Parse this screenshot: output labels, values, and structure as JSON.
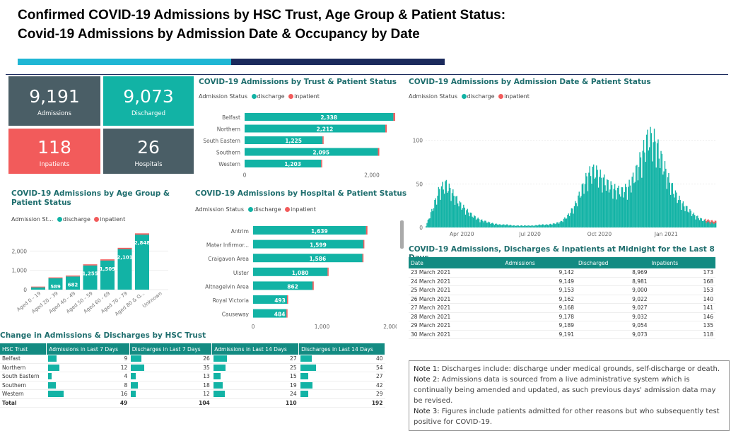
{
  "page": {
    "title_line1": "Confirmed COVID-19 Admissions by HSC Trust, Age Group & Patient Status:",
    "title_line2": "Covid-19 Admissions by Admission Date & Occupancy by Date"
  },
  "colors": {
    "discharge": "#12b3a5",
    "inpatient": "#f25b5b",
    "dark": "#4a5e66",
    "header": "#138b82",
    "bar_light": "#1fb6d4",
    "bar_dark": "#1b2a5c"
  },
  "cards": [
    {
      "value": "9,191",
      "label": "Admissions",
      "color": "#4a5e66"
    },
    {
      "value": "9,073",
      "label": "Discharged",
      "color": "#12b3a5"
    },
    {
      "value": "118",
      "label": "Inpatients",
      "color": "#f25b5b"
    },
    {
      "value": "26",
      "label": "Hospitals",
      "color": "#4a5e66"
    }
  ],
  "legend": {
    "label": "Admission Status",
    "label_short": "Admission St...",
    "discharge": "discharge",
    "inpatient": "inpatient"
  },
  "chart_data": [
    {
      "type": "bar",
      "title": "COVID-19 Admissions by Trust & Patient Status",
      "orientation": "horizontal",
      "categories": [
        "Belfast",
        "Northern",
        "South Eastern",
        "Southern",
        "Western"
      ],
      "series": [
        {
          "name": "discharge",
          "values": [
            2338,
            2212,
            1225,
            2095,
            1203
          ]
        },
        {
          "name": "inpatient",
          "values": [
            28,
            22,
            8,
            22,
            10
          ]
        }
      ],
      "data_labels": [
        "2,338",
        "2,212",
        "1,225",
        "2,095",
        "1,203"
      ],
      "xlim": [
        0,
        2500
      ],
      "x_ticks": [
        "0",
        "2,000"
      ]
    },
    {
      "type": "line",
      "title": "COVID-19 Admissions by Admission Date & Patient Status",
      "ylim": [
        0,
        120
      ],
      "y_ticks": [
        "0",
        "50",
        "100"
      ],
      "x_ticks": [
        "Apr 2020",
        "Jul 2020",
        "Oct 2020",
        "Jan 2021"
      ],
      "approximate_weekly_admissions": [
        2,
        20,
        40,
        45,
        35,
        25,
        18,
        12,
        8,
        6,
        4,
        3,
        3,
        2,
        2,
        2,
        2,
        3,
        3,
        4,
        6,
        12,
        22,
        38,
        55,
        60,
        52,
        45,
        40,
        38,
        42,
        55,
        75,
        95,
        90,
        70,
        50,
        35,
        25,
        18,
        12,
        8,
        6,
        5
      ]
    },
    {
      "type": "bar",
      "title": "COVID-19 Admissions by Age Group & Patient Status",
      "categories": [
        "Aged 0 - 19",
        "Aged 20 - 39",
        "Aged 40 - 49",
        "Aged 50 - 59",
        "Aged 60 - 69",
        "Aged 70 - 79",
        "Aged 80 & O...",
        "Unknown"
      ],
      "series": [
        {
          "name": "discharge",
          "values": [
            120,
            589,
            682,
            1255,
            1509,
            2101,
            2848,
            0
          ]
        },
        {
          "name": "inpatient",
          "values": [
            2,
            8,
            10,
            18,
            22,
            28,
            30,
            0
          ]
        }
      ],
      "data_labels": [
        "",
        "589",
        "682",
        "1,255",
        "1,509",
        "2,101",
        "2,848",
        ""
      ],
      "ylim": [
        0,
        3000
      ],
      "y_ticks": [
        "0",
        "1,000",
        "2,000"
      ]
    },
    {
      "type": "bar",
      "title": "COVID-19 Admissions by Hospital & Patient Status",
      "orientation": "horizontal",
      "categories": [
        "Antrim",
        "Mater Infirmor...",
        "Craigavon Area",
        "Ulster",
        "Altnagelvin Area",
        "Royal Victoria",
        "Causeway"
      ],
      "series": [
        {
          "name": "discharge",
          "values": [
            1639,
            1599,
            1586,
            1080,
            862,
            493,
            484
          ]
        },
        {
          "name": "inpatient",
          "values": [
            20,
            8,
            10,
            6,
            18,
            2,
            2
          ]
        }
      ],
      "data_labels": [
        "1,639",
        "1,599",
        "1,586",
        "1,080",
        "862",
        "493",
        "484"
      ],
      "xlim": [
        0,
        2000
      ],
      "x_ticks": [
        "0",
        "1,000",
        "2,000"
      ]
    }
  ],
  "trust_change": {
    "title": "Change in Admissions & Discharges by HSC Trust",
    "columns": [
      "HSC Trust",
      "Admissions in Last 7 Days",
      "Discharges in Last 7 Days",
      "Admissions in Last 14 Days",
      "Discharges in Last 14 Days"
    ],
    "rows": [
      {
        "trust": "Belfast",
        "v": [
          9,
          26,
          27,
          40
        ]
      },
      {
        "trust": "Northern",
        "v": [
          12,
          35,
          25,
          54
        ]
      },
      {
        "trust": "South Eastern",
        "v": [
          4,
          13,
          15,
          27
        ]
      },
      {
        "trust": "Southern",
        "v": [
          8,
          18,
          19,
          42
        ]
      },
      {
        "trust": "Western",
        "v": [
          16,
          12,
          24,
          29
        ]
      }
    ],
    "total": {
      "label": "Total",
      "v": [
        49,
        104,
        110,
        192
      ]
    },
    "max": [
      16,
      35,
      27,
      54
    ]
  },
  "midnight": {
    "title": "COVID-19 Admissions, Discharges & Inpatients at Midnight for the Last 8 Days",
    "columns": [
      "Date",
      "Admissions",
      "Discharged",
      "Inpatients"
    ],
    "rows": [
      [
        "23 March 2021",
        "9,142",
        "8,969",
        "173"
      ],
      [
        "24 March 2021",
        "9,149",
        "8,981",
        "168"
      ],
      [
        "25 March 2021",
        "9,153",
        "9,000",
        "153"
      ],
      [
        "26 March 2021",
        "9,162",
        "9,022",
        "140"
      ],
      [
        "27 March 2021",
        "9,168",
        "9,027",
        "141"
      ],
      [
        "28 March 2021",
        "9,178",
        "9,032",
        "146"
      ],
      [
        "29 March 2021",
        "9,189",
        "9,054",
        "135"
      ],
      [
        "30 March 2021",
        "9,191",
        "9,073",
        "118"
      ]
    ]
  },
  "notes": [
    {
      "label": "Note 1:",
      "text": " Discharges include: discharge under medical grounds, self-discharge or death."
    },
    {
      "label": "Note 2:",
      "text": " Admissions data is sourced from a live administrative system which is continually being amended and updated, as such previous days' admission data may be revised."
    },
    {
      "label": "Note 3:",
      "text": " Figures include patients admitted for other reasons but who subsequently test positive for COVID-19."
    }
  ]
}
